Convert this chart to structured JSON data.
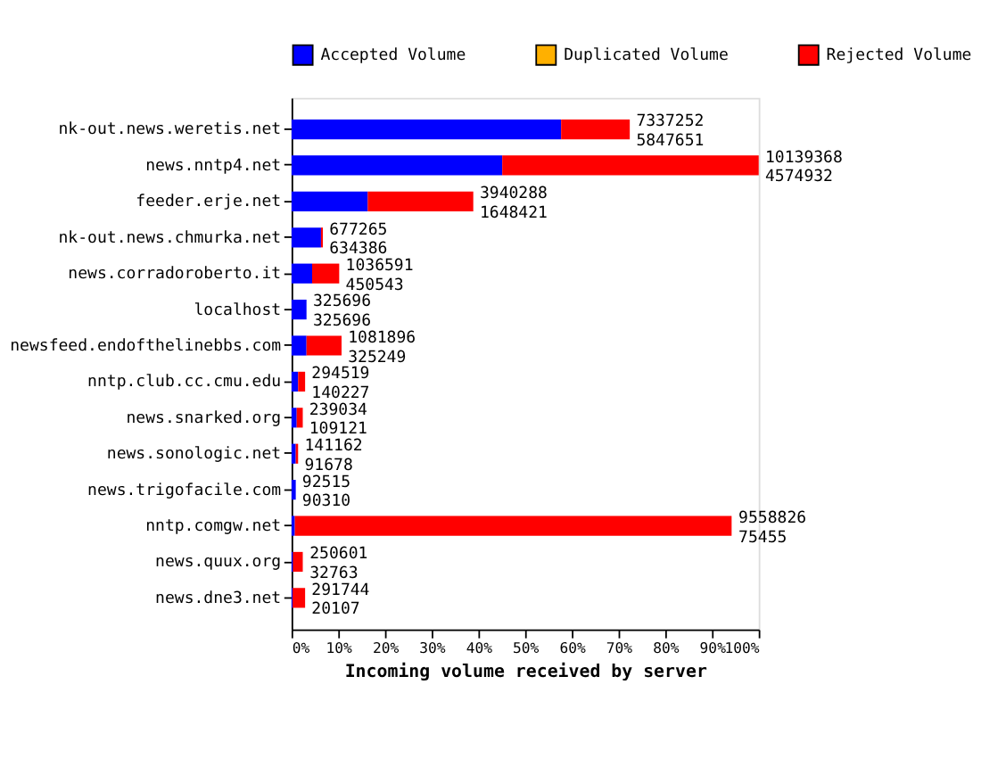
{
  "chart_data": {
    "type": "bar",
    "orientation": "horizontal",
    "stacked": true,
    "legend": "top",
    "grid": false,
    "xlabel": "Incoming volume received by server",
    "categories": [
      "nk-out.news.weretis.net",
      "news.nntp4.net",
      "feeder.erje.net",
      "nk-out.news.chmurka.net",
      "news.corradoroberto.it",
      "localhost",
      "newsfeed.endofthelinebbs.com",
      "nntp.club.cc.cmu.edu",
      "news.snarked.org",
      "news.sonologic.net",
      "news.trigofacile.com",
      "nntp.comgw.net",
      "news.quux.org",
      "news.dne3.net"
    ],
    "xlim": [
      0,
      100
    ],
    "xticks": [
      {
        "value": 0,
        "label": "0%"
      },
      {
        "value": 10,
        "label": "10%"
      },
      {
        "value": 20,
        "label": "20%"
      },
      {
        "value": 30,
        "label": "30%"
      },
      {
        "value": 40,
        "label": "40%"
      },
      {
        "value": 50,
        "label": "50%"
      },
      {
        "value": 60,
        "label": "60%"
      },
      {
        "value": 70,
        "label": "70%"
      },
      {
        "value": 80,
        "label": "80%"
      },
      {
        "value": 90,
        "label": "90%"
      },
      {
        "value": 100,
        "label": "100%"
      }
    ],
    "series": [
      {
        "name": "Accepted Volume",
        "color": "#0000ff",
        "values": [
          57.7,
          45.1,
          16.3,
          6.3,
          4.4,
          3.2,
          3.2,
          1.4,
          1.1,
          0.9,
          0.9,
          0.7,
          0.3,
          0.2
        ]
      },
      {
        "name": "Duplicated Volume",
        "color": "#ffb000",
        "values": [
          0,
          0,
          0,
          0,
          0,
          0,
          0,
          0,
          0,
          0,
          0,
          0,
          0,
          0
        ]
      },
      {
        "name": "Rejected Volume",
        "color": "#ff0000",
        "values": [
          14.7,
          54.9,
          22.6,
          0.4,
          5.8,
          0,
          7.5,
          1.5,
          1.3,
          0.5,
          0.0,
          93.5,
          2.1,
          2.7
        ]
      }
    ],
    "annotations": [
      {
        "text": "7337252\n5847651",
        "x": 72.4,
        "y": "nk-out.news.weretis.net"
      },
      {
        "text": "10139368\n4574932",
        "x": 100,
        "y": "news.nntp4.net"
      },
      {
        "text": "3940288\n1648421",
        "x": 38.9,
        "y": "feeder.erje.net"
      },
      {
        "text": "677265\n634386",
        "x": 6.7,
        "y": "nk-out.news.chmurka.net"
      },
      {
        "text": "1036591\n450543",
        "x": 10.2,
        "y": "news.corradoroberto.it"
      },
      {
        "text": "325696\n325696",
        "x": 3.2,
        "y": "localhost"
      },
      {
        "text": "1081896\n325249",
        "x": 10.7,
        "y": "newsfeed.endofthelinebbs.com"
      },
      {
        "text": "294519\n140227",
        "x": 2.9,
        "y": "nntp.club.cc.cmu.edu"
      },
      {
        "text": "239034\n109121",
        "x": 2.4,
        "y": "news.snarked.org"
      },
      {
        "text": "141162\n91678",
        "x": 1.4,
        "y": "news.sonologic.net"
      },
      {
        "text": "92515\n90310",
        "x": 0.9,
        "y": "news.trigofacile.com"
      },
      {
        "text": "9558826\n75455",
        "x": 94.3,
        "y": "nntp.comgw.net"
      },
      {
        "text": "250601\n32763",
        "x": 2.5,
        "y": "news.quux.org"
      },
      {
        "text": "291744\n20107",
        "x": 2.9,
        "y": "news.dne3.net"
      }
    ]
  }
}
